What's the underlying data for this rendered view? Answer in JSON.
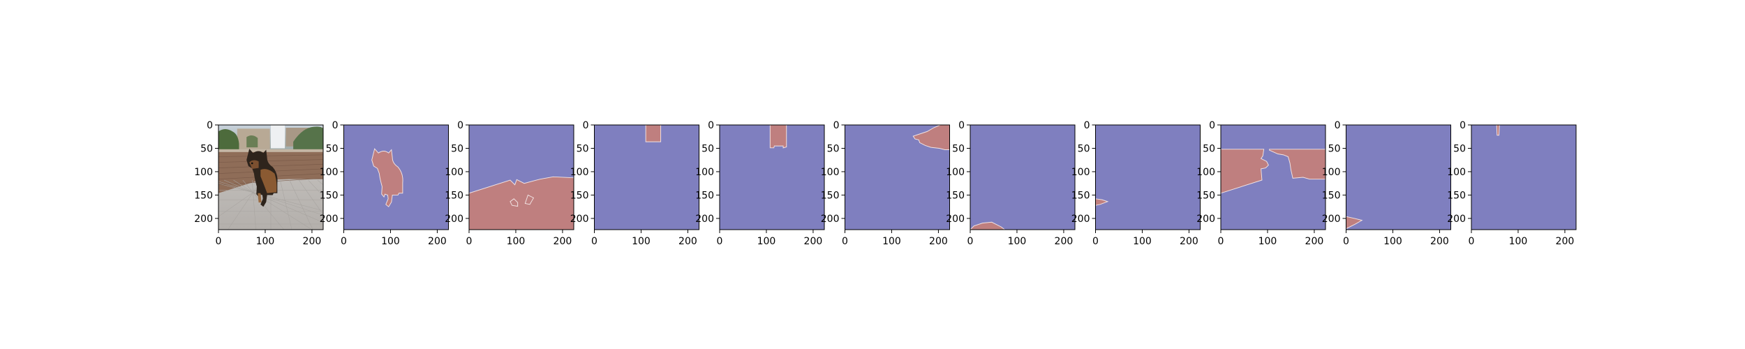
{
  "chart_data": {
    "type": "image-grid",
    "panel_count": 11,
    "grid": false,
    "image_size": 224,
    "xlim": [
      0,
      224
    ],
    "ylim": [
      224,
      0
    ],
    "x_ticks": [
      0,
      100,
      200
    ],
    "y_ticks": [
      0,
      50,
      100,
      150,
      200
    ],
    "x_tick_labels": [
      "0",
      "100",
      "200"
    ],
    "y_tick_labels": [
      "0",
      "50",
      "100",
      "150",
      "200"
    ],
    "colors": {
      "background_mask": "#7f7fbf",
      "foreground_mask": "#bf7f7f",
      "mask_edge": "#f2e4e4"
    },
    "panels": [
      {
        "kind": "photo",
        "subject": "german-shepherd-dog-on-patio"
      },
      {
        "kind": "mask",
        "label": "dog"
      },
      {
        "kind": "mask",
        "label": "floor"
      },
      {
        "kind": "mask",
        "label": "door-upper"
      },
      {
        "kind": "mask",
        "label": "door-full"
      },
      {
        "kind": "mask",
        "label": "upper-right-foliage"
      },
      {
        "kind": "mask",
        "label": "bottom-left-corner"
      },
      {
        "kind": "mask",
        "label": "left-edge-sliver"
      },
      {
        "kind": "mask",
        "label": "wall"
      },
      {
        "kind": "mask",
        "label": "bottom-left-triangle"
      },
      {
        "kind": "mask",
        "label": "thin-top-strip"
      }
    ]
  }
}
